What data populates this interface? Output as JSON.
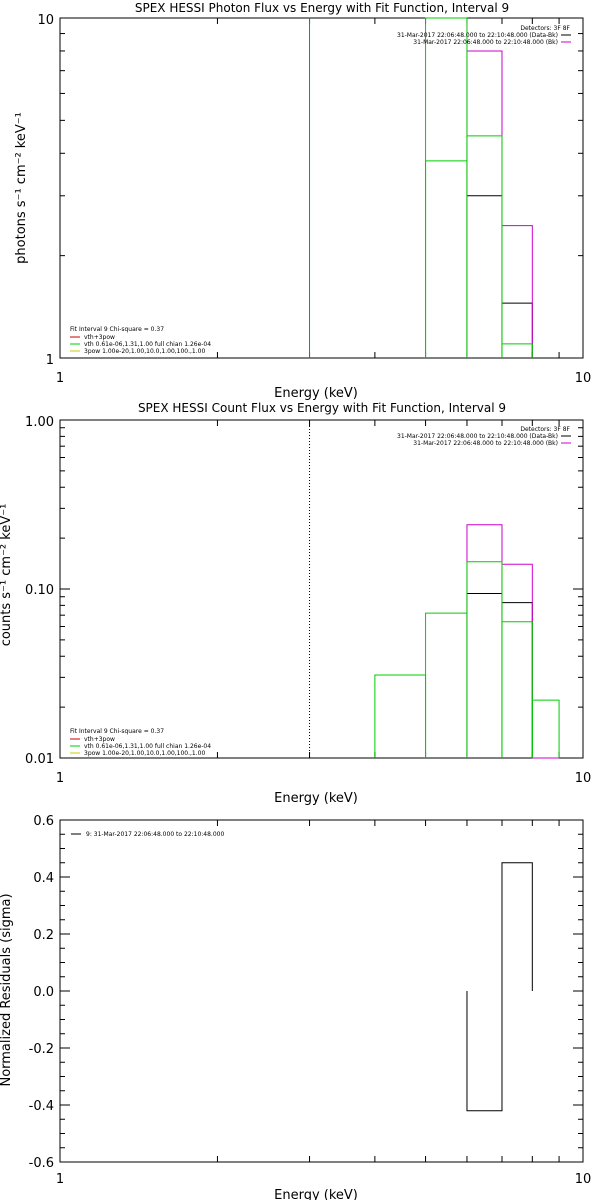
{
  "chart_data": [
    {
      "type": "line",
      "title": "SPEX HESSI Photon Flux vs Energy with Fit Function, Interval 9",
      "xlabel": "Energy (keV)",
      "ylabel": "photons s⁻¹ cm⁻² keV⁻¹",
      "xscale": "log",
      "yscale": "log",
      "xlim": [
        1,
        10
      ],
      "ylim": [
        1,
        10
      ],
      "x_ticklabels": [
        "1",
        "10"
      ],
      "y_ticklabels": [
        "1",
        "10"
      ],
      "legend_top": {
        "title": "Detectors: 3F 8F",
        "entries": [
          {
            "label": "31-Mar-2017 22:06:48.000 to 22:10:48.000 (Data-Bk)",
            "color": "#000000"
          },
          {
            "label": "31-Mar-2017 22:06:48.000 to 22:10:48.000 (Bk)",
            "color": "#cc00cc"
          }
        ]
      },
      "legend_bottom": {
        "title": "Fit Interval 9   Chi-square = 0.37",
        "entries": [
          {
            "label": "vth+3pow",
            "color": "#cc0000"
          },
          {
            "label": "vth 0.61e-06,1.31,1.00  full chian 1.26e-04",
            "color": "#00cc00"
          },
          {
            "label": "3pow 1.00e-20,1.00,10.0,1.00,100.,1.00",
            "color": "#cccc00"
          }
        ]
      },
      "vlines": [
        {
          "x": 3.0,
          "style": "solid",
          "color": "#00aa00"
        }
      ],
      "series": [
        {
          "color": "#000000",
          "bins": [
            [
              6,
              7,
              3.0
            ],
            [
              7,
              8,
              1.45
            ]
          ]
        },
        {
          "color": "#cc00cc",
          "bins": [
            [
              6,
              7,
              8.0
            ],
            [
              7,
              8,
              2.45
            ]
          ]
        },
        {
          "color": "#00cc00",
          "bins": [
            [
              5,
              6,
              10.0
            ],
            [
              5,
              6,
              3.8
            ],
            [
              6,
              7,
              4.5
            ],
            [
              7,
              8,
              1.1
            ]
          ]
        }
      ]
    },
    {
      "type": "line",
      "title": "SPEX HESSI Count Flux vs Energy with Fit Function, Interval 9",
      "xlabel": "Energy (keV)",
      "ylabel": "counts s⁻¹ cm⁻² keV⁻¹",
      "xscale": "log",
      "yscale": "log",
      "xlim": [
        1,
        10
      ],
      "ylim": [
        0.01,
        1.0
      ],
      "x_ticklabels": [
        "1",
        "10"
      ],
      "y_ticklabels": [
        "0.01",
        "0.10",
        "1.00"
      ],
      "legend_top": {
        "title": "Detectors: 3F 8F",
        "entries": [
          {
            "label": "31-Mar-2017 22:06:48.000 to 22:10:48.000 (Data-Bk)",
            "color": "#000000"
          },
          {
            "label": "31-Mar-2017 22:06:48.000 to 22:10:48.000 (Bk)",
            "color": "#cc00cc"
          }
        ]
      },
      "legend_bottom": {
        "title": "Fit Interval 9   Chi-square = 0.37",
        "entries": [
          {
            "label": "vth+3pow",
            "color": "#cc0000"
          },
          {
            "label": "vth 0.61e-06,1.31,1.00  full chian 1.26e-04",
            "color": "#00cc00"
          },
          {
            "label": "3pow 1.00e-20,1.00,10.0,1.00,100.,1.00",
            "color": "#cccc00"
          }
        ]
      },
      "vlines": [
        {
          "x": 3.0,
          "style": "dotted",
          "color": "#000000"
        }
      ],
      "series": [
        {
          "color": "#000000",
          "bins": [
            [
              6,
              7,
              0.094
            ],
            [
              7,
              8,
              0.083
            ]
          ]
        },
        {
          "color": "#cc00cc",
          "bins": [
            [
              6,
              7,
              0.24
            ],
            [
              7,
              8,
              0.14
            ],
            [
              8,
              9,
              0.01
            ]
          ]
        },
        {
          "color": "#00cc00",
          "bins": [
            [
              4,
              5,
              0.031
            ],
            [
              5,
              6,
              0.072
            ],
            [
              6,
              7,
              0.145
            ],
            [
              7,
              8,
              0.064
            ],
            [
              8,
              9,
              0.022
            ]
          ]
        }
      ]
    },
    {
      "type": "line",
      "title": "",
      "xlabel": "Energy (keV)",
      "ylabel": "Normalized Residuals (sigma)",
      "xscale": "log",
      "yscale": "linear",
      "xlim": [
        1,
        10
      ],
      "ylim": [
        -0.6,
        0.6
      ],
      "x_ticklabels": [
        "1",
        "10"
      ],
      "y_ticklabels": [
        "-0.6",
        "-0.4",
        "-0.2",
        "0.0",
        "0.2",
        "0.4",
        "0.6"
      ],
      "legend_top": {
        "title": "",
        "entries": [
          {
            "label": "9: 31-Mar-2017 22:06:48.000 to 22:10:48.000",
            "color": "#000000"
          }
        ]
      },
      "vlines": [],
      "series": [
        {
          "color": "#000000",
          "bins": [
            [
              6,
              7,
              -0.42
            ],
            [
              7,
              8,
              0.45
            ]
          ]
        }
      ]
    }
  ]
}
